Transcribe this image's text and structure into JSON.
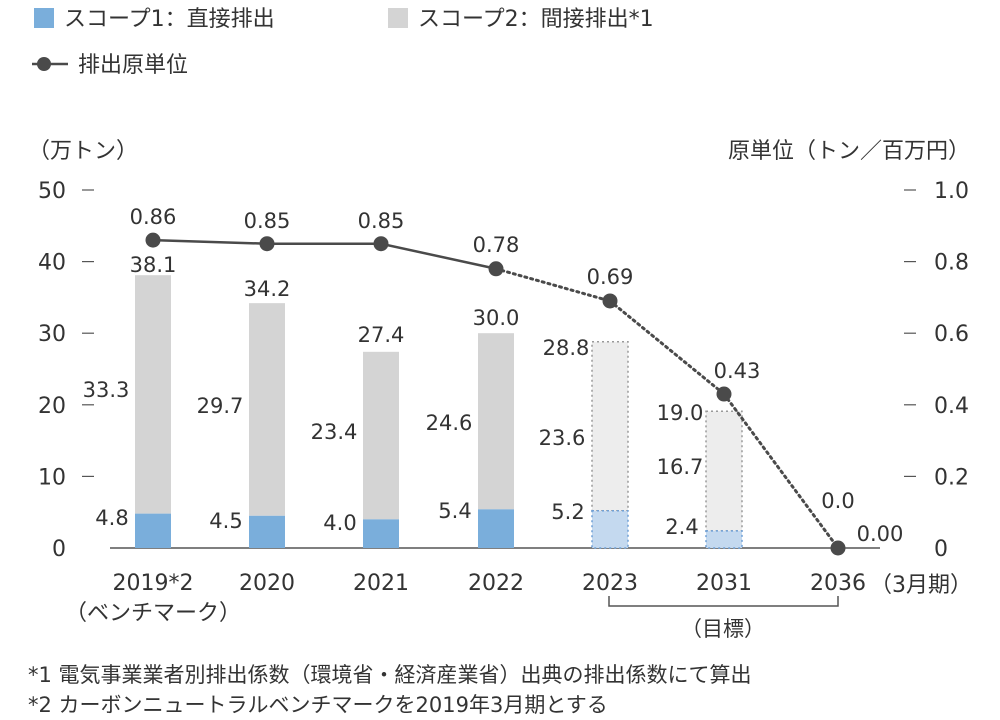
{
  "chart_data": {
    "type": "bar",
    "categories": [
      "2019*2",
      "2020",
      "2021",
      "2022",
      "2023",
      "2031",
      "2036"
    ],
    "category_sublabels": {
      "0": "（ベンチマーク）"
    },
    "x_unit_label": "（3月期）",
    "y_left": {
      "label": "（万トン）",
      "ticks": [
        "0",
        "10",
        "20",
        "30",
        "40",
        "50"
      ],
      "ylim": [
        0,
        50
      ]
    },
    "y_right": {
      "label": "原単位（トン／百万円）",
      "ticks": [
        "0",
        "0.2",
        "0.4",
        "0.6",
        "0.8",
        "1.0"
      ],
      "ylim": [
        0,
        1.0
      ]
    },
    "series": [
      {
        "name": "スコープ1：直接排出",
        "kind": "bar",
        "values": [
          4.8,
          4.5,
          4.0,
          5.4,
          5.2,
          2.4,
          0.0
        ],
        "labels": [
          "4.8",
          "4.5",
          "4.0",
          "5.4",
          "5.2",
          "2.4",
          ""
        ]
      },
      {
        "name": "スコープ2：間接排出*1",
        "kind": "bar",
        "values": [
          33.3,
          29.7,
          23.4,
          24.6,
          23.6,
          16.7,
          0.0
        ],
        "labels": [
          "33.3",
          "29.7",
          "23.4",
          "24.6",
          "23.6",
          "16.7",
          ""
        ]
      },
      {
        "name": "排出原単位",
        "kind": "line",
        "axis": "right",
        "values": [
          0.86,
          0.85,
          0.85,
          0.78,
          0.69,
          0.43,
          0.0
        ],
        "labels": [
          "0.86",
          "0.85",
          "0.85",
          "0.78",
          "0.69",
          "0.43",
          "0.00"
        ]
      }
    ],
    "totals": [
      "38.1",
      "34.2",
      "27.4",
      "30.0",
      "28.8",
      "19.0",
      "0.0"
    ],
    "forecast_from_index": 4,
    "bracket_label": "（目標）",
    "colors": {
      "scope1": "#7aaedb",
      "scope2": "#d4d4d4",
      "scope1_forecast": "#c4d9ef",
      "scope2_forecast": "#ededed",
      "line": "#4a4a4a"
    }
  },
  "legend": {
    "scope1": "スコープ1：直接排出",
    "scope2": "スコープ2：間接排出*1",
    "line": "排出原単位"
  },
  "notes": [
    "*1 電気事業業者別排出係数（環境省・経済産業省）出典の排出係数にて算出",
    "*2 カーボンニュートラルベンチマークを2019年3月期とする"
  ]
}
